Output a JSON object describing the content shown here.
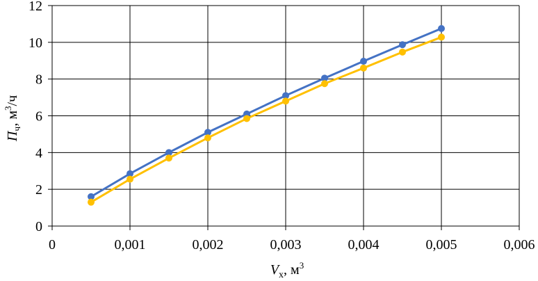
{
  "chart_data": {
    "type": "line",
    "xlabel": {
      "symbol": "V",
      "subscript": "х",
      "unit_prefix": ", м",
      "unit_sup": "3"
    },
    "ylabel": {
      "symbol": "П",
      "subscript": "ч",
      "unit_prefix": ", м",
      "unit_sup": "3",
      "unit_suffix": "/ч"
    },
    "xlim": [
      0,
      0.006
    ],
    "ylim": [
      0,
      12
    ],
    "x_ticks": [
      0,
      0.001,
      0.002,
      0.003,
      0.004,
      0.005,
      0.006
    ],
    "x_tick_labels": [
      "0",
      "0,001",
      "0,002",
      "0,003",
      "0,004",
      "0,005",
      "0,006"
    ],
    "y_ticks": [
      0,
      2,
      4,
      6,
      8,
      10,
      12
    ],
    "y_tick_labels": [
      "0",
      "2",
      "4",
      "6",
      "8",
      "10",
      "12"
    ],
    "grid": true,
    "legend": "none",
    "x": [
      0.0005,
      0.001,
      0.0015,
      0.002,
      0.0025,
      0.003,
      0.0035,
      0.004,
      0.0045,
      0.005
    ],
    "series": [
      {
        "color": "#4472C4",
        "values": [
          1.6,
          2.85,
          4.0,
          5.1,
          6.1,
          7.1,
          8.05,
          8.97,
          9.87,
          10.75
        ]
      },
      {
        "color": "#FFC000",
        "values": [
          1.3,
          2.55,
          3.7,
          4.8,
          5.85,
          6.8,
          7.75,
          8.6,
          9.47,
          10.28
        ]
      }
    ]
  }
}
